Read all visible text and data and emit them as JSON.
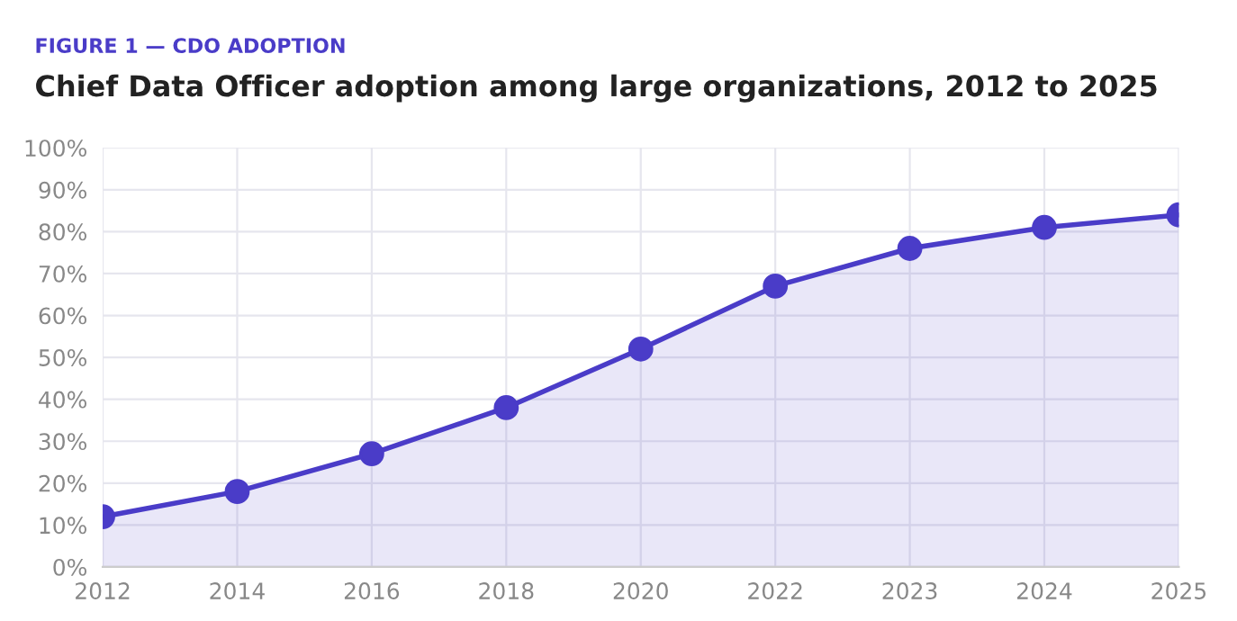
{
  "chart_data": {
    "type": "area",
    "subtitle": "FIGURE 1 — CDO ADOPTION",
    "title": "Chief Data Officer adoption among large organizations, 2012 to 2025",
    "categories": [
      "2012",
      "2014",
      "2016",
      "2018",
      "2020",
      "2022",
      "2023",
      "2024",
      "2025"
    ],
    "series": [
      {
        "color": "#4a3cc8",
        "values": [
          12,
          18,
          27,
          38,
          52,
          67,
          76,
          81,
          84
        ]
      }
    ],
    "ylim": [
      0,
      100
    ],
    "yticks": [
      {
        "value": 0,
        "label": "0%"
      },
      {
        "value": 10,
        "label": "10%"
      },
      {
        "value": 20,
        "label": "20%"
      },
      {
        "value": 30,
        "label": "30%"
      },
      {
        "value": 40,
        "label": "40%"
      },
      {
        "value": 50,
        "label": "50%"
      },
      {
        "value": 60,
        "label": "60%"
      },
      {
        "value": 70,
        "label": "70%"
      },
      {
        "value": 80,
        "label": "80%"
      },
      {
        "value": 90,
        "label": "90%"
      },
      {
        "value": 100,
        "label": "100%"
      }
    ],
    "grid": true,
    "marker": "circle",
    "line_style": "solid",
    "legend": false
  }
}
